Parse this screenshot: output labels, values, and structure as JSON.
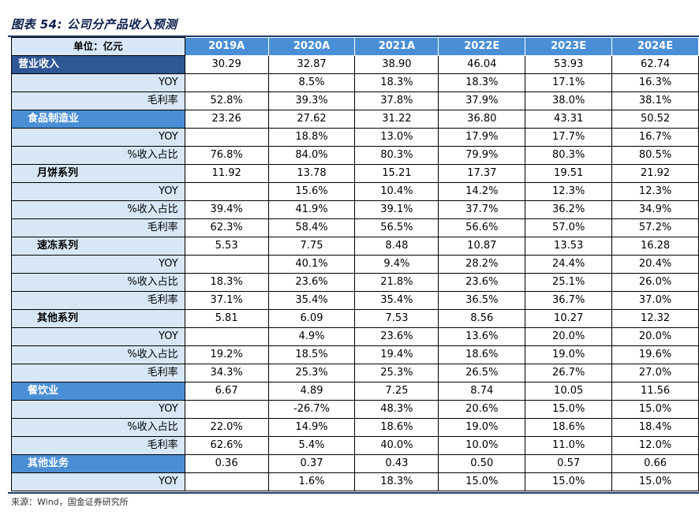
{
  "title": "图表 54: 公司分产品收入预测",
  "header": {
    "unit_label": "单位：亿元",
    "years": [
      "2019A",
      "2020A",
      "2021A",
      "2022E",
      "2023E",
      "2024E"
    ]
  },
  "rows": [
    {
      "label": "营业收入",
      "kind": "major",
      "values": [
        "30.29",
        "32.87",
        "38.90",
        "46.04",
        "53.93",
        "62.74"
      ]
    },
    {
      "label": "YOY",
      "kind": "metric",
      "values": [
        "",
        "8.5%",
        "18.3%",
        "18.3%",
        "17.1%",
        "16.3%"
      ]
    },
    {
      "label": "毛利率",
      "kind": "metric",
      "values": [
        "52.8%",
        "39.3%",
        "37.8%",
        "37.9%",
        "38.0%",
        "38.1%"
      ]
    },
    {
      "label": "食品制造业",
      "kind": "sub",
      "values": [
        "23.26",
        "27.62",
        "31.22",
        "36.80",
        "43.31",
        "50.52"
      ]
    },
    {
      "label": "YOY",
      "kind": "metric",
      "values": [
        "",
        "18.8%",
        "13.0%",
        "17.9%",
        "17.7%",
        "16.7%"
      ]
    },
    {
      "label": "%收入占比",
      "kind": "metric",
      "values": [
        "76.8%",
        "84.0%",
        "80.3%",
        "79.9%",
        "80.3%",
        "80.5%"
      ]
    },
    {
      "label": "月饼系列",
      "kind": "subsub",
      "values": [
        "11.92",
        "13.78",
        "15.21",
        "17.37",
        "19.51",
        "21.92"
      ]
    },
    {
      "label": "YOY",
      "kind": "metric",
      "values": [
        "",
        "15.6%",
        "10.4%",
        "14.2%",
        "12.3%",
        "12.3%"
      ]
    },
    {
      "label": "%收入占比",
      "kind": "metric",
      "values": [
        "39.4%",
        "41.9%",
        "39.1%",
        "37.7%",
        "36.2%",
        "34.9%"
      ]
    },
    {
      "label": "毛利率",
      "kind": "metric",
      "values": [
        "62.3%",
        "58.4%",
        "56.5%",
        "56.6%",
        "57.0%",
        "57.2%"
      ]
    },
    {
      "label": "速冻系列",
      "kind": "subsub",
      "values": [
        "5.53",
        "7.75",
        "8.48",
        "10.87",
        "13.53",
        "16.28"
      ]
    },
    {
      "label": "YOY",
      "kind": "metric",
      "values": [
        "",
        "40.1%",
        "9.4%",
        "28.2%",
        "24.4%",
        "20.4%"
      ]
    },
    {
      "label": "%收入占比",
      "kind": "metric",
      "values": [
        "18.3%",
        "23.6%",
        "21.8%",
        "23.6%",
        "25.1%",
        "26.0%"
      ]
    },
    {
      "label": "毛利率",
      "kind": "metric",
      "values": [
        "37.1%",
        "35.4%",
        "35.4%",
        "36.5%",
        "36.7%",
        "37.0%"
      ]
    },
    {
      "label": "其他系列",
      "kind": "subsub",
      "values": [
        "5.81",
        "6.09",
        "7.53",
        "8.56",
        "10.27",
        "12.32"
      ]
    },
    {
      "label": "YOY",
      "kind": "metric",
      "values": [
        "",
        "4.9%",
        "23.6%",
        "13.6%",
        "20.0%",
        "20.0%"
      ]
    },
    {
      "label": "%收入占比",
      "kind": "metric",
      "values": [
        "19.2%",
        "18.5%",
        "19.4%",
        "18.6%",
        "19.0%",
        "19.6%"
      ]
    },
    {
      "label": "毛利率",
      "kind": "metric",
      "values": [
        "34.3%",
        "25.3%",
        "25.3%",
        "26.5%",
        "26.7%",
        "27.0%"
      ]
    },
    {
      "label": "餐饮业",
      "kind": "sub",
      "values": [
        "6.67",
        "4.89",
        "7.25",
        "8.74",
        "10.05",
        "11.56"
      ]
    },
    {
      "label": "YOY",
      "kind": "metric",
      "values": [
        "",
        "-26.7%",
        "48.3%",
        "20.6%",
        "15.0%",
        "15.0%"
      ]
    },
    {
      "label": "%收入占比",
      "kind": "metric",
      "values": [
        "22.0%",
        "14.9%",
        "18.6%",
        "19.0%",
        "18.6%",
        "18.4%"
      ]
    },
    {
      "label": "毛利率",
      "kind": "metric",
      "values": [
        "62.6%",
        "5.4%",
        "40.0%",
        "10.0%",
        "11.0%",
        "12.0%"
      ]
    },
    {
      "label": "其他业务",
      "kind": "sub",
      "values": [
        "0.36",
        "0.37",
        "0.43",
        "0.50",
        "0.57",
        "0.66"
      ]
    },
    {
      "label": "YOY",
      "kind": "metric",
      "values": [
        "",
        "1.6%",
        "18.3%",
        "15.0%",
        "15.0%",
        "15.0%"
      ]
    }
  ],
  "source": "来源：Wind，国金证券研究所"
}
